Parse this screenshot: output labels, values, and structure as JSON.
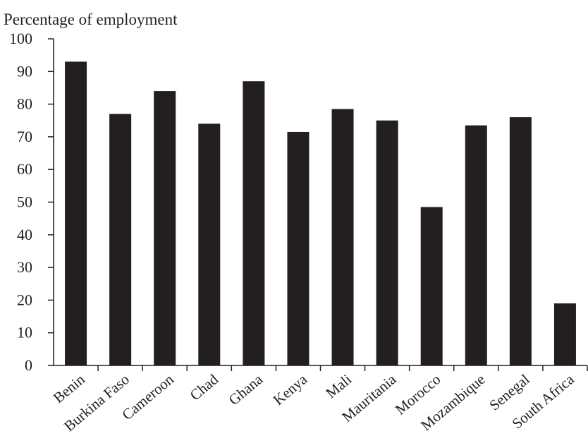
{
  "chart_data": {
    "type": "bar",
    "title": "",
    "xlabel": "",
    "ylabel": "Percentage of employment",
    "ylim": [
      0,
      100
    ],
    "yticks": [
      0,
      10,
      20,
      30,
      40,
      50,
      60,
      70,
      80,
      90,
      100
    ],
    "grid": false,
    "legend": "none",
    "categories": [
      "Benin",
      "Burkina Faso",
      "Cameroon",
      "Chad",
      "Ghana",
      "Kenya",
      "Mali",
      "Mauritania",
      "Morocco",
      "Mozambique",
      "Senegal",
      "South Africa"
    ],
    "values": [
      93,
      77,
      84,
      74,
      87,
      71.5,
      78.5,
      75,
      48.5,
      73.5,
      76,
      19
    ],
    "bar_color": "#231f20",
    "axis_color": "#231f20"
  }
}
